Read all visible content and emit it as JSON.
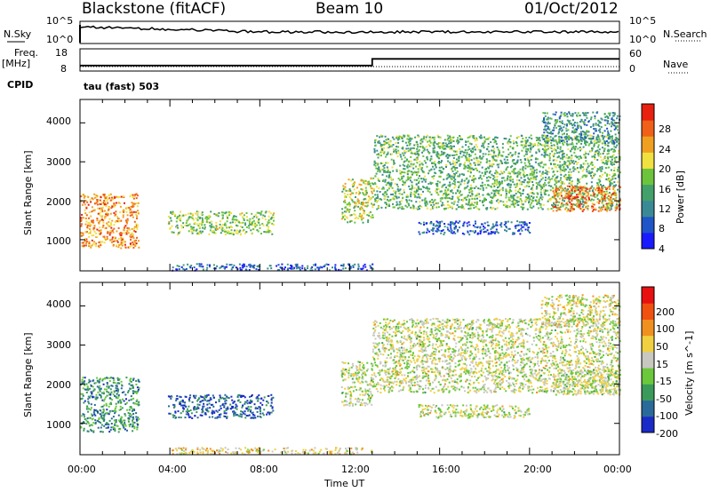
{
  "header": {
    "station": "Blackstone (fitACF)",
    "beam": "Beam 10",
    "date": "01/Oct/2012"
  },
  "top_panel": {
    "left_label": "N.Sky",
    "left_ticks": [
      "10^5",
      "10^0"
    ],
    "right_label": "N.Search",
    "right_ticks": [
      "10^5",
      "10^0"
    ]
  },
  "freq_panel": {
    "left_label_1": "Freq.",
    "left_label_2": "[MHz]",
    "left_ticks": [
      "18",
      "8"
    ],
    "right_label": "Nave",
    "right_ticks": [
      "60",
      "0"
    ],
    "cpid_label": "CPID",
    "cpid_value": "tau (fast) 503"
  },
  "power_panel": {
    "ylabel": "Slant Range [km]",
    "yticks": [
      "4000",
      "3000",
      "2000",
      "1000"
    ],
    "colorbar_label": "Power [dB]",
    "colorbar_ticks": [
      "28",
      "24",
      "20",
      "16",
      "12",
      "8",
      "4"
    ],
    "colors": [
      "#1a1aff",
      "#1f55c8",
      "#3a8a96",
      "#43a06a",
      "#6cc43c",
      "#f0e040",
      "#f0a020",
      "#f06018",
      "#e82010"
    ]
  },
  "velocity_panel": {
    "ylabel": "Slant Range [km]",
    "yticks": [
      "4000",
      "3000",
      "2000",
      "1000"
    ],
    "colorbar_label": "Velocity [m s^-1]",
    "colorbar_ticks": [
      "200",
      "100",
      "50",
      "15",
      "-15",
      "-50",
      "-100",
      "-200"
    ],
    "colors": [
      "#1a2ac8",
      "#2a6a9a",
      "#3a9a5a",
      "#6ac83a",
      "#c8c8c0",
      "#f0d040",
      "#f09020",
      "#f05010",
      "#e81010"
    ]
  },
  "x_axis": {
    "ticks": [
      "00:00",
      "04:00",
      "08:00",
      "12:00",
      "16:00",
      "20:00",
      "00:00"
    ],
    "label": "Time UT"
  },
  "chart_data": {
    "type": "heatmap",
    "title": "Blackstone (fitACF)   Beam 10   01/Oct/2012",
    "xlabel": "Time UT",
    "ylabel": "Slant Range [km]",
    "xlim_hours": [
      0,
      24
    ],
    "ylim_km": [
      200,
      4600
    ],
    "frequency_series": {
      "name": "Freq.",
      "x_hours": [
        0,
        13.0,
        13.0,
        24
      ],
      "values_mhz": [
        10.5,
        10.5,
        13.5,
        13.5
      ]
    },
    "power_scale_db": [
      0,
      32
    ],
    "velocity_scale_ms": [
      -250,
      250
    ],
    "scatter_regions": [
      {
        "t_start": 0.0,
        "t_end": 2.6,
        "r_low": 800,
        "r_high": 2200,
        "power_db": 24,
        "velocity_ms": -120
      },
      {
        "t_start": 3.9,
        "t_end": 8.6,
        "r_low": 1150,
        "r_high": 1750,
        "power_db": 16,
        "velocity_ms": -180
      },
      {
        "t_start": 11.6,
        "t_end": 13.0,
        "r_low": 1450,
        "r_high": 2600,
        "power_db": 18,
        "velocity_ms": -10
      },
      {
        "t_start": 13.0,
        "t_end": 24.0,
        "r_low": 1800,
        "r_high": 3700,
        "power_db": 14,
        "velocity_ms": 0
      },
      {
        "t_start": 21.0,
        "t_end": 24.0,
        "r_low": 1750,
        "r_high": 2400,
        "power_db": 26,
        "velocity_ms": -5
      },
      {
        "t_start": 20.5,
        "t_end": 24.0,
        "r_low": 3500,
        "r_high": 4300,
        "power_db": 10,
        "velocity_ms": 20
      },
      {
        "t_start": 15.0,
        "t_end": 20.0,
        "r_low": 1150,
        "r_high": 1500,
        "power_db": 6,
        "velocity_ms": 0
      },
      {
        "t_start": 4.0,
        "t_end": 13.0,
        "r_low": 230,
        "r_high": 400,
        "power_db": 6,
        "velocity_ms": 40
      }
    ]
  }
}
